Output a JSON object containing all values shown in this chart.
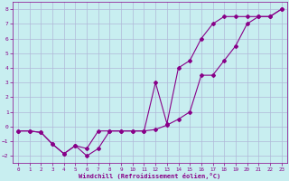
{
  "title": "",
  "xlabel": "Windchill (Refroidissement éolien,°C)",
  "ylabel": "",
  "bg_color": "#c8eef0",
  "grid_color": "#b0b8d8",
  "line_color": "#880088",
  "xlim": [
    -0.5,
    23.5
  ],
  "ylim": [
    -2.5,
    8.5
  ],
  "xticks": [
    0,
    1,
    2,
    3,
    4,
    5,
    6,
    7,
    8,
    9,
    10,
    11,
    12,
    13,
    14,
    15,
    16,
    17,
    18,
    19,
    20,
    21,
    22,
    23
  ],
  "yticks": [
    -2,
    -1,
    0,
    1,
    2,
    3,
    4,
    5,
    6,
    7,
    8
  ],
  "line1_x": [
    0,
    1,
    2,
    3,
    4,
    5,
    6,
    7,
    8,
    9,
    10,
    11,
    12,
    13,
    14,
    15,
    16,
    17,
    18,
    19,
    20,
    21,
    22,
    23
  ],
  "line1_y": [
    -0.3,
    -0.3,
    -0.4,
    -1.2,
    -1.85,
    -1.3,
    -2.0,
    -1.5,
    -0.3,
    -0.3,
    -0.3,
    -0.3,
    -0.2,
    0.1,
    0.5,
    1.0,
    3.5,
    3.5,
    4.5,
    5.5,
    7.0,
    7.5,
    7.5,
    8.0
  ],
  "line2_x": [
    0,
    1,
    2,
    3,
    4,
    5,
    6,
    7,
    8,
    9,
    10,
    11,
    12,
    13,
    14,
    15,
    16,
    17,
    18,
    19,
    20,
    21,
    22,
    23
  ],
  "line2_y": [
    -0.3,
    -0.3,
    -0.4,
    -1.2,
    -1.85,
    -1.3,
    -1.5,
    -0.3,
    -0.3,
    -0.3,
    -0.3,
    -0.3,
    3.0,
    0.2,
    4.0,
    4.5,
    6.0,
    7.0,
    7.5,
    7.5,
    7.5,
    7.5,
    7.5,
    8.0
  ]
}
